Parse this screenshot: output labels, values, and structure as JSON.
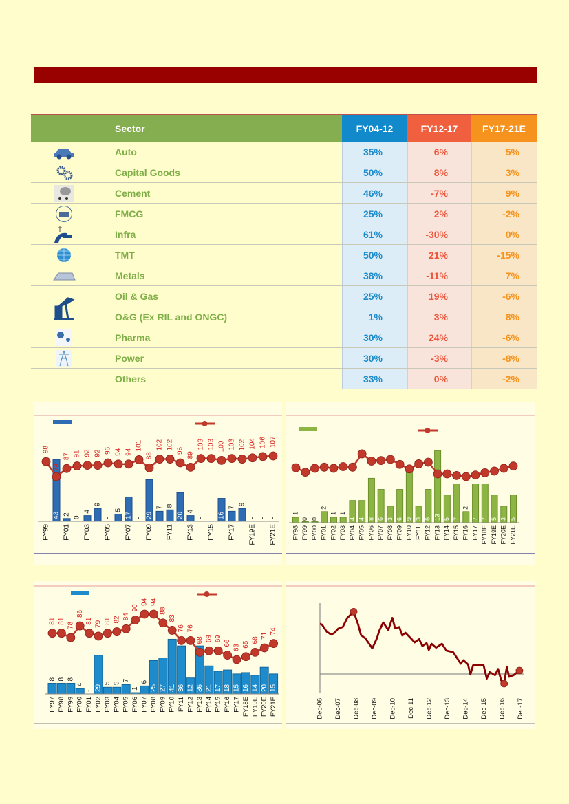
{
  "table": {
    "headers": {
      "sector": "Sector",
      "c1": "FY04-12",
      "c2": "FY12-17",
      "c3": "FY17-21E"
    },
    "rows": [
      {
        "sector": "Auto",
        "icon": "car-wrench-icon",
        "c1": "35%",
        "c2": "6%",
        "c3": "5%"
      },
      {
        "sector": "Capital Goods",
        "icon": "gears-icon",
        "c1": "50%",
        "c2": "8%",
        "c3": "3%"
      },
      {
        "sector": "Cement",
        "icon": "cement-mixer-icon",
        "c1": "46%",
        "c2": "-7%",
        "c3": "9%"
      },
      {
        "sector": "FMCG",
        "icon": "consumer-goods-icon",
        "c1": "25%",
        "c2": "2%",
        "c3": "-2%"
      },
      {
        "sector": "Infra",
        "icon": "road-infrastructure-icon",
        "c1": "61%",
        "c2": "-30%",
        "c3": "0%"
      },
      {
        "sector": "TMT",
        "icon": "globe-icon",
        "c1": "50%",
        "c2": "21%",
        "c3": "-15%"
      },
      {
        "sector": "Metals",
        "icon": "metal-ingots-icon",
        "c1": "38%",
        "c2": "-11%",
        "c3": "7%"
      },
      {
        "sector": "Oil & Gas",
        "icon": "oil-pump-icon",
        "c1": "25%",
        "c2": "19%",
        "c3": "-6%"
      },
      {
        "sector": "O&G (Ex RIL and ONGC)",
        "icon": "",
        "c1": "1%",
        "c2": "3%",
        "c3": "8%"
      },
      {
        "sector": "Pharma",
        "icon": "pharma-icon",
        "c1": "30%",
        "c2": "24%",
        "c3": "-6%"
      },
      {
        "sector": "Power",
        "icon": "power-tower-icon",
        "c1": "30%",
        "c2": "-3%",
        "c3": "-8%"
      },
      {
        "sector": "Others",
        "icon": "",
        "c1": "33%",
        "c2": "0%",
        "c3": "-2%"
      }
    ]
  },
  "colors": {
    "banner": "#990000",
    "blue": "#1289ca",
    "red": "#f0603e",
    "orange": "#f6931e",
    "green": "#84ae4f",
    "line": "#c0392b"
  },
  "chart_data": [
    {
      "type": "bar+line",
      "categories": [
        "FY99",
        "FY00",
        "FY01",
        "FY02",
        "FY03",
        "FY04",
        "FY05",
        "FY06",
        "FY07",
        "FY08",
        "FY09",
        "FY10",
        "FY11",
        "FY12",
        "FY13",
        "FY14",
        "FY15",
        "FY16",
        "FY17",
        "FY18",
        "FY19E",
        "FY20E",
        "FY21E"
      ],
      "x_tick_labels_shown": [
        "FY99",
        "FY01",
        "FY03",
        "FY05",
        "FY07",
        "FY09",
        "FY11",
        "FY13",
        "FY15",
        "FY17",
        "FY19E",
        "FY21E"
      ],
      "bar_series": {
        "values": [
          null,
          43,
          2,
          0,
          4,
          9,
          null,
          5,
          17,
          null,
          29,
          7,
          8,
          20,
          4,
          null,
          null,
          16,
          7,
          9,
          null,
          null,
          null
        ],
        "labels": [
          "",
          "43",
          "2",
          "0",
          "4",
          "9",
          "-",
          "5",
          "17",
          "-",
          "29",
          "7",
          "8",
          "20",
          "4",
          "-",
          "-",
          "16",
          "7",
          "9",
          "-",
          "-",
          "-"
        ]
      },
      "line_series": {
        "values": [
          98,
          74,
          87,
          91,
          92,
          92,
          96,
          94,
          94,
          101,
          88,
          102,
          102,
          96,
          89,
          103,
          103,
          100,
          103,
          102,
          104,
          106,
          107
        ]
      }
    },
    {
      "type": "bar+line",
      "categories": [
        "FY98",
        "FY99",
        "FY00",
        "FY01",
        "FY02",
        "FY03",
        "FY04",
        "FY05",
        "FY06",
        "FY07",
        "FY08",
        "FY09",
        "FY10",
        "FY11",
        "FY12",
        "FY13",
        "FY14",
        "FY15",
        "FY16",
        "FY17",
        "FY18E",
        "FY19E",
        "FY20E",
        "FY21E"
      ],
      "bar_series": {
        "values": [
          1,
          0,
          0,
          2,
          1,
          1,
          4,
          4,
          8,
          6,
          3,
          6,
          9,
          3,
          6,
          13,
          5,
          7,
          2,
          7,
          7,
          5,
          3,
          5
        ]
      },
      "line_series": {
        "values": [
          9.9,
          9.1,
          9.8,
          10.0,
          9.8,
          10.1,
          10.0,
          12.4,
          11.1,
          11.2,
          11.4,
          10.5,
          9.7,
          10.6,
          10.9,
          8.8,
          8.8,
          8.5,
          8.3,
          8.6,
          9.0,
          9.3,
          9.8,
          10.2
        ]
      }
    },
    {
      "type": "bar+line",
      "categories": [
        "FY97",
        "FY98",
        "FY99",
        "FY00",
        "FY01",
        "FY02",
        "FY03",
        "FY04",
        "FY05",
        "FY06",
        "FY07",
        "FY08",
        "FY09",
        "FY10",
        "FY11",
        "FY12",
        "FY13",
        "FY14",
        "FY15",
        "FY16",
        "FY17",
        "FY18E",
        "FY19E",
        "FY20E",
        "FY21E"
      ],
      "bar_series": {
        "values": [
          8,
          8,
          8,
          4,
          null,
          29,
          5,
          5,
          7,
          1,
          6,
          25,
          27,
          41,
          36,
          12,
          36,
          21,
          17,
          18,
          15,
          16,
          14,
          20,
          15
        ],
        "labels": [
          "8",
          "8",
          "8",
          "4",
          "-",
          "29",
          "5",
          "5",
          "7",
          "1",
          "6",
          "25",
          "27",
          "41",
          "36",
          "12",
          "36",
          "21",
          "17",
          "18",
          "15",
          "16",
          "14",
          "20",
          "15"
        ]
      },
      "line_series": {
        "values": [
          81,
          81,
          78,
          86,
          81,
          79,
          81,
          82,
          84,
          90,
          94,
          94,
          88,
          83,
          76,
          76,
          68,
          69,
          69,
          66,
          63,
          65,
          68,
          71,
          74
        ]
      }
    },
    {
      "type": "line",
      "x_tick_labels": [
        "Dec-06",
        "Dec-07",
        "Dec-08",
        "Dec-09",
        "Dec-10",
        "Dec-11",
        "Dec-12",
        "Dec-13",
        "Dec-14",
        "Dec-15",
        "Dec-16",
        "Dec-17"
      ],
      "x_unit": "years since Dec-06",
      "points": [
        [
          0,
          22
        ],
        [
          0.12,
          21.5
        ],
        [
          0.37,
          18.5
        ],
        [
          0.62,
          17.2
        ],
        [
          0.8,
          18
        ],
        [
          1.0,
          19.8
        ],
        [
          1.25,
          20.5
        ],
        [
          1.5,
          24.5
        ],
        [
          1.85,
          27.2
        ],
        [
          2.1,
          21.5
        ],
        [
          2.25,
          17
        ],
        [
          2.5,
          15.5
        ],
        [
          2.87,
          11.2
        ],
        [
          3.12,
          15.5
        ],
        [
          3.25,
          18.8
        ],
        [
          3.47,
          22.5
        ],
        [
          3.75,
          19.2
        ],
        [
          3.97,
          24.5
        ],
        [
          4.12,
          20
        ],
        [
          4.35,
          20.5
        ],
        [
          4.52,
          16.8
        ],
        [
          4.69,
          18
        ],
        [
          5.0,
          15.5
        ],
        [
          5.19,
          13.8
        ],
        [
          5.44,
          15.2
        ],
        [
          5.62,
          12.2
        ],
        [
          5.85,
          13.5
        ],
        [
          5.97,
          10.5
        ],
        [
          6.12,
          13.2
        ],
        [
          6.37,
          11.5
        ],
        [
          6.69,
          13.2
        ],
        [
          6.94,
          10.2
        ],
        [
          7.31,
          9.5
        ],
        [
          7.5,
          7.2
        ],
        [
          7.72,
          4.5
        ],
        [
          7.87,
          6
        ],
        [
          8.12,
          4.2
        ],
        [
          8.25,
          -0.2
        ],
        [
          8.4,
          3.8
        ],
        [
          8.97,
          4
        ],
        [
          9.15,
          -2
        ],
        [
          9.31,
          0.8
        ],
        [
          9.6,
          -0.5
        ],
        [
          9.77,
          2.2
        ],
        [
          9.94,
          -2.8
        ],
        [
          10.1,
          -4.2
        ],
        [
          10.25,
          3.2
        ],
        [
          10.37,
          -1.2
        ],
        [
          10.62,
          -0.5
        ],
        [
          10.94,
          1.5
        ]
      ],
      "highlighted_points": [
        [
          1.85,
          27.2
        ],
        [
          10.1,
          -4.2
        ],
        [
          10.94,
          1.5
        ]
      ],
      "reference_line": 0
    }
  ]
}
